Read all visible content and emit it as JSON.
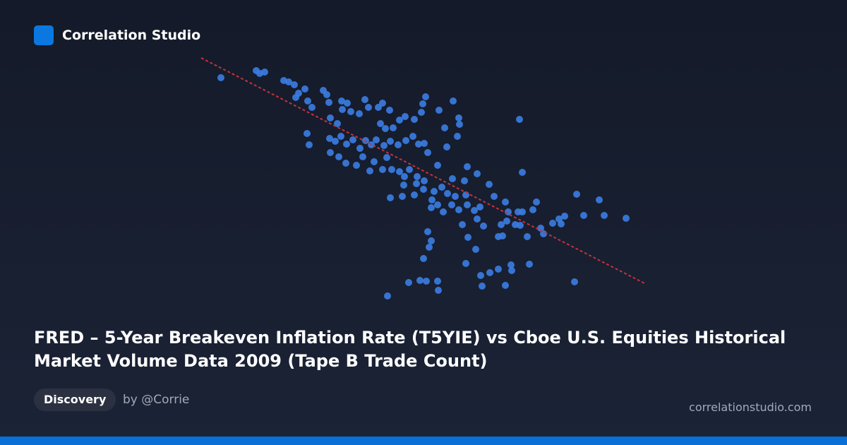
{
  "brand": "Correlation Studio",
  "chart_data": {
    "type": "scatter",
    "title": "FRED – 5-Year Breakeven Inflation Rate (T5YIE) vs Cboe U.S. Equities Historical Market Volume Data 2009 (Tape B Trade Count)",
    "color": "#3b7de3",
    "xlim": [
      0,
      640
    ],
    "ylim": [
      0,
      350
    ],
    "x": [
      33,
      83,
      88,
      95,
      122,
      129,
      137,
      152,
      143,
      139,
      156,
      162,
      178,
      183,
      186,
      204,
      212,
      205,
      217,
      229,
      237,
      242,
      256,
      262,
      272,
      259,
      266,
      277,
      286,
      294,
      307,
      317,
      323,
      319,
      342,
      362,
      370,
      371,
      350,
      368,
      353,
      456,
      155,
      158,
      188,
      198,
      187,
      195,
      203,
      211,
      220,
      230,
      238,
      246,
      253,
      264,
      273,
      284,
      295,
      305,
      313,
      321,
      188,
      200,
      210,
      225,
      234,
      244,
      250,
      262,
      268,
      275,
      286,
      300,
      311,
      326,
      340,
      321,
      293,
      292,
      310,
      273,
      290,
      307,
      320,
      335,
      346,
      361,
      378,
      382,
      396,
      413,
      354,
      365,
      380,
      332,
      340,
      331,
      348,
      360,
      370,
      382,
      392,
      400,
      375,
      396,
      405,
      420,
      436,
      440,
      454,
      460,
      475,
      480,
      460,
      438,
      450,
      457,
      467,
      430,
      426,
      432,
      486,
      490,
      503,
      512,
      520,
      515,
      537,
      547,
      569,
      576,
      607,
      326,
      331,
      328,
      320,
      383,
      394,
      380,
      401,
      414,
      426,
      444,
      445,
      470,
      403,
      436,
      534,
      299,
      315,
      324,
      340,
      341,
      269
    ],
    "y": [
      320,
      330,
      326,
      328,
      316,
      314,
      310,
      304,
      298,
      292,
      287,
      278,
      302,
      296,
      285,
      287,
      284,
      275,
      272,
      269,
      289,
      278,
      278,
      284,
      274,
      255,
      248,
      249,
      260,
      265,
      261,
      271,
      293,
      283,
      274,
      287,
      263,
      254,
      249,
      237,
      222,
      261,
      241,
      225,
      263,
      255,
      234,
      230,
      237,
      226,
      232,
      220,
      231,
      225,
      232,
      224,
      230,
      225,
      231,
      237,
      226,
      227,
      214,
      208,
      199,
      196,
      208,
      188,
      201,
      190,
      207,
      190,
      187,
      190,
      180,
      214,
      196,
      174,
      180,
      168,
      170,
      150,
      152,
      154,
      162,
      159,
      165,
      177,
      174,
      194,
      184,
      169,
      156,
      152,
      154,
      147,
      140,
      136,
      130,
      140,
      133,
      140,
      132,
      137,
      112,
      120,
      110,
      152,
      144,
      130,
      130,
      130,
      133,
      144,
      186,
      117,
      112,
      111,
      95,
      112,
      95,
      96,
      107,
      99,
      114,
      120,
      124,
      113,
      155,
      125,
      147,
      125,
      121,
      102,
      89,
      80,
      64,
      94,
      77,
      57,
      40,
      44,
      49,
      55,
      47,
      56,
      25,
      26,
      31,
      30,
      33,
      32,
      32,
      19,
      11
    ],
    "trendline": {
      "color": "#c4323c",
      "x": [
        5,
        635
      ],
      "y": [
        348,
        28
      ]
    }
  },
  "tag": "Discovery",
  "author": "by @Corrie",
  "site": "correlationstudio.com"
}
